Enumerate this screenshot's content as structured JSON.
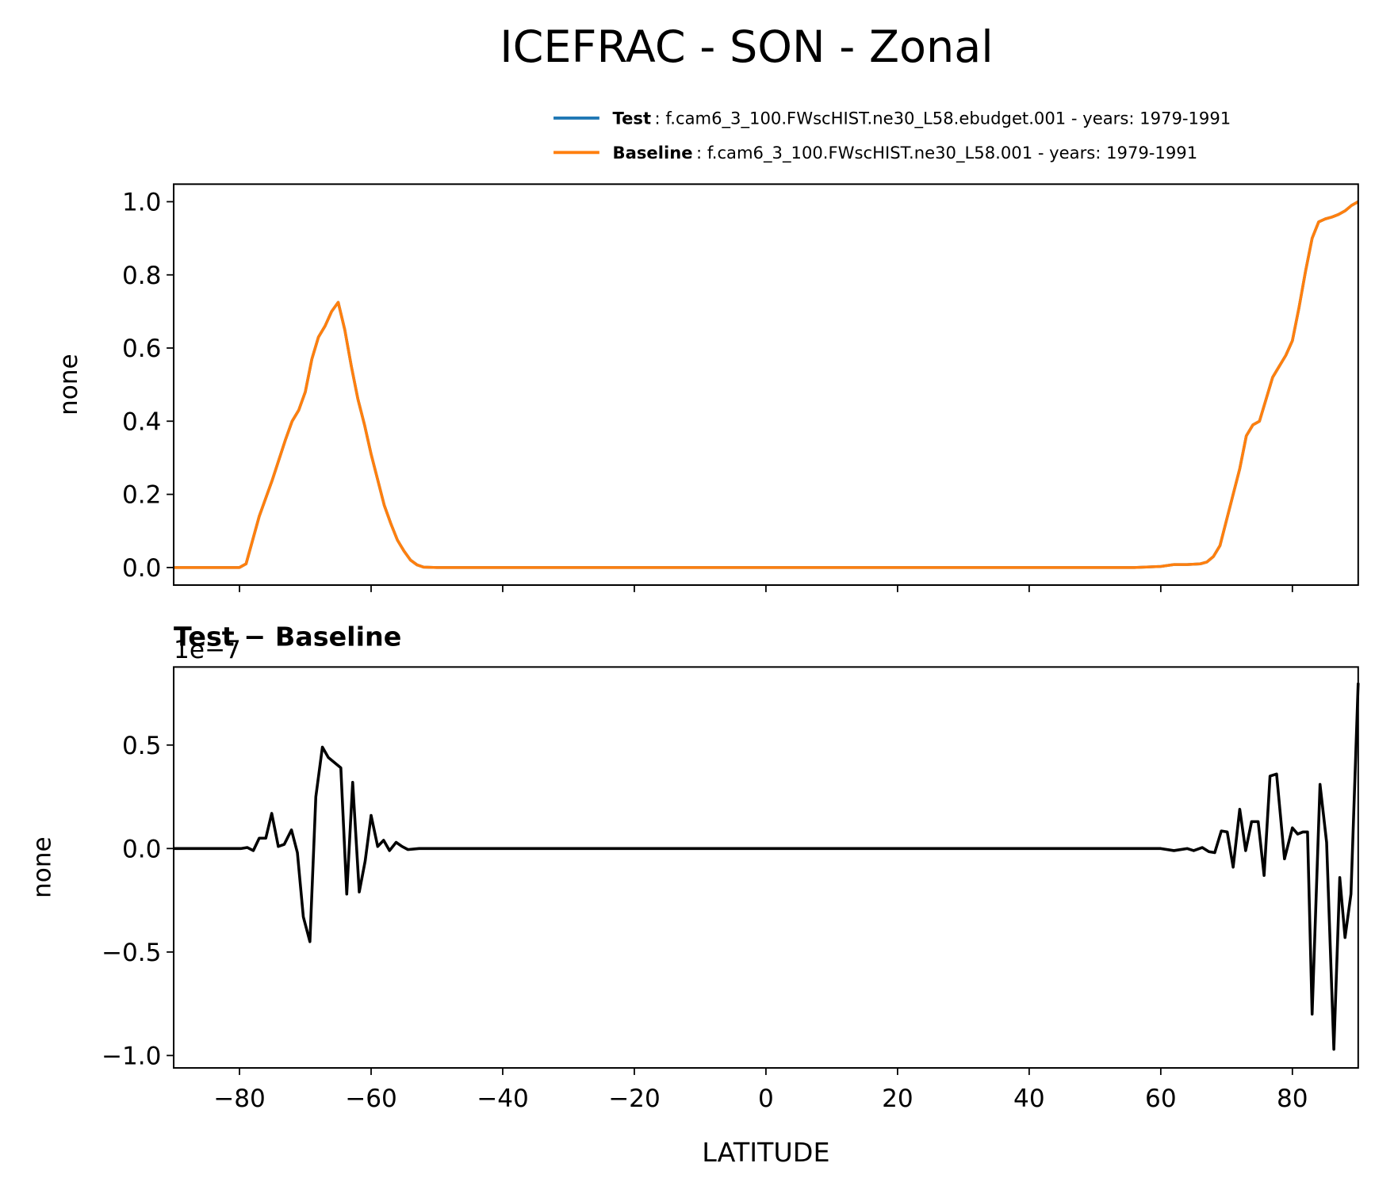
{
  "title": "ICEFRAC - SON - Zonal",
  "chart_data": [
    {
      "type": "line",
      "ylabel": "none",
      "xlim": [
        -90,
        90
      ],
      "ylim": [
        -0.048,
        1.048
      ],
      "yticks": [
        {
          "value": 0,
          "label": "0.0"
        },
        0.2,
        0.4,
        0.6,
        0.8,
        {
          "value": 1,
          "label": "1.0"
        }
      ],
      "x": [
        -90,
        -80,
        -79,
        -77,
        -75,
        -73,
        -72,
        -71,
        -70,
        -69,
        -68,
        -67,
        -66,
        -65,
        -64,
        -63,
        -62,
        -61,
        -60,
        -59,
        -58,
        -57,
        -56,
        -55,
        -54,
        -53,
        -52,
        -50,
        0,
        56,
        60,
        62,
        64,
        66,
        67,
        68,
        69,
        70,
        71,
        72,
        73,
        74,
        75,
        76,
        77,
        78,
        79,
        80,
        81,
        82,
        83,
        84,
        85,
        86,
        87,
        88,
        89,
        90
      ],
      "series": [
        {
          "name": "Test",
          "description": ": f.cam6_3_100.FWscHIST.ne30_L58.ebudget.001 - years: 1979-1991",
          "color": "#1f77b4",
          "values": [
            0,
            0,
            0.01,
            0.14,
            0.24,
            0.35,
            0.4,
            0.43,
            0.48,
            0.57,
            0.63,
            0.66,
            0.7,
            0.725,
            0.65,
            0.55,
            0.46,
            0.39,
            0.31,
            0.24,
            0.17,
            0.12,
            0.075,
            0.045,
            0.02,
            0.007,
            0.001,
            0,
            0,
            0,
            0.003,
            0.008,
            0.008,
            0.01,
            0.015,
            0.03,
            0.06,
            0.13,
            0.2,
            0.27,
            0.36,
            0.39,
            0.4,
            0.46,
            0.52,
            0.55,
            0.58,
            0.62,
            0.71,
            0.81,
            0.9,
            0.945,
            0.953,
            0.958,
            0.965,
            0.975,
            0.99,
            1.0
          ]
        },
        {
          "name": "Baseline",
          "description": ": f.cam6_3_100.FWscHIST.ne30_L58.001 - years: 1979-1991",
          "color": "#ff7f0e",
          "values": [
            0,
            0,
            0.01,
            0.14,
            0.24,
            0.35,
            0.4,
            0.43,
            0.48,
            0.57,
            0.63,
            0.66,
            0.7,
            0.725,
            0.65,
            0.55,
            0.46,
            0.39,
            0.31,
            0.24,
            0.17,
            0.12,
            0.075,
            0.045,
            0.02,
            0.007,
            0.001,
            0,
            0,
            0,
            0.003,
            0.008,
            0.008,
            0.01,
            0.015,
            0.03,
            0.06,
            0.13,
            0.2,
            0.27,
            0.36,
            0.39,
            0.4,
            0.46,
            0.52,
            0.55,
            0.58,
            0.62,
            0.71,
            0.81,
            0.9,
            0.945,
            0.953,
            0.958,
            0.965,
            0.975,
            0.99,
            1.0
          ]
        }
      ]
    },
    {
      "type": "line",
      "title": "Test − Baseline",
      "ylabel": "none",
      "xlabel": "LATITUDE",
      "y_offset_label": "1e−7",
      "xlim": [
        -90,
        90
      ],
      "ylim": [
        -1.06,
        0.877
      ],
      "xticks": [
        {
          "value": -80,
          "label": "−80"
        },
        {
          "value": -60,
          "label": "−60"
        },
        {
          "value": -40,
          "label": "−40"
        },
        {
          "value": -20,
          "label": "−20"
        },
        0,
        20,
        40,
        60,
        80
      ],
      "yticks": [
        {
          "value": -1,
          "label": "−1.0"
        },
        {
          "value": -0.5,
          "label": "−0.5"
        },
        {
          "value": 0,
          "label": "0.0"
        },
        0.5
      ],
      "x": [
        -90,
        -79.8,
        -78.8,
        -77.9,
        -77,
        -76,
        -75.1,
        -74.1,
        -73.2,
        -72.1,
        -71.2,
        -70.3,
        -69.3,
        -68.4,
        -67.4,
        -66.5,
        -64.6,
        -63.7,
        -62.8,
        -61.8,
        -60.9,
        -60,
        -59,
        -58.1,
        -57.2,
        -56.2,
        -55.3,
        -54.4,
        -52.7,
        56,
        60,
        62,
        64,
        65,
        66.3,
        67.3,
        68.2,
        69.2,
        70.1,
        71,
        72,
        72.9,
        73.8,
        74.8,
        75.7,
        76.6,
        77.6,
        78.8,
        80,
        80.8,
        81.6,
        82.3,
        83,
        84.2,
        85.2,
        86.3,
        87.2,
        88,
        88.9,
        90
      ],
      "series": [
        {
          "name": "Test − Baseline",
          "color": "#000000",
          "values": [
            0,
            0,
            0.005,
            -0.01,
            0.05,
            0.05,
            0.17,
            0.01,
            0.02,
            0.09,
            -0.02,
            -0.33,
            -0.45,
            0.25,
            0.49,
            0.44,
            0.39,
            -0.22,
            0.32,
            -0.21,
            -0.06,
            0.16,
            0.01,
            0.04,
            -0.01,
            0.03,
            0.01,
            -0.005,
            0,
            0,
            0,
            -0.01,
            0,
            -0.01,
            0.005,
            -0.015,
            -0.02,
            0.085,
            0.08,
            -0.09,
            0.19,
            -0.01,
            0.13,
            0.13,
            -0.13,
            0.35,
            0.36,
            -0.05,
            0.1,
            0.07,
            0.08,
            0.08,
            -0.8,
            0.31,
            0.03,
            -0.97,
            -0.14,
            -0.43,
            -0.22,
            0.8
          ]
        }
      ]
    }
  ]
}
